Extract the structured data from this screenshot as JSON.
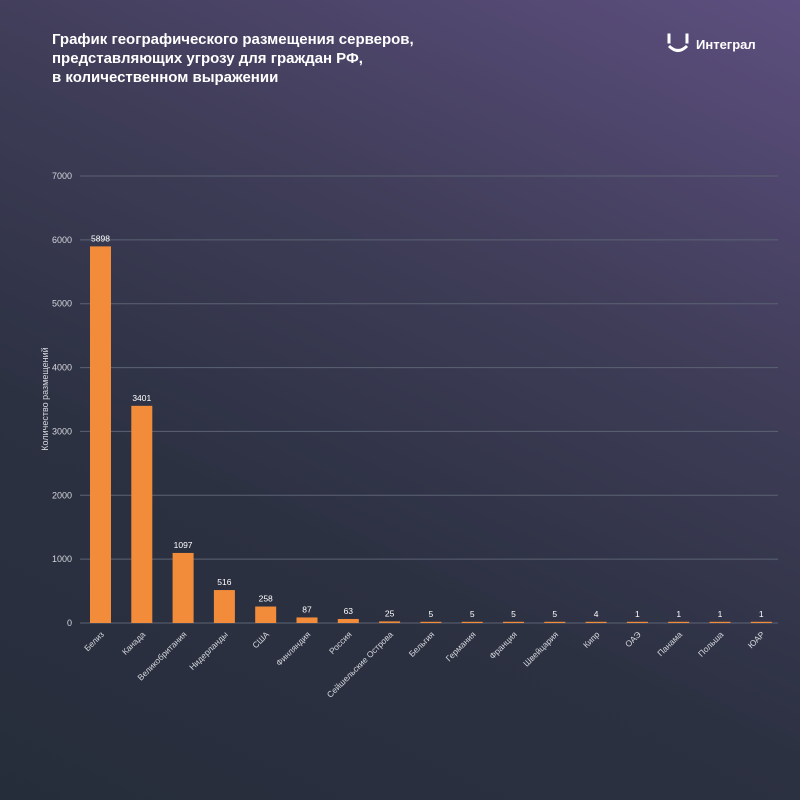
{
  "header": {
    "title_lines": [
      "График географического размещения серверов,",
      "представляющих угрозу для граждан РФ,",
      "в количественном выражении"
    ],
    "logo_text": "Интеграл",
    "logo_icon": "integral-bracket-icon"
  },
  "colors": {
    "bar": "#f28c3a",
    "grid": "#5c6373",
    "text": "#ffffff",
    "axis_text": "#d5d7dd"
  },
  "chart_data": {
    "type": "bar",
    "title": "График географического размещения серверов, представляющих угрозу для граждан РФ, в количественном выражении",
    "xlabel": "",
    "ylabel": "Количество размещений",
    "ylim": [
      0,
      7000
    ],
    "yticks": [
      0,
      1000,
      2000,
      3000,
      4000,
      5000,
      6000,
      7000
    ],
    "grid": true,
    "categories": [
      "Белиз",
      "Канада",
      "Великобритания",
      "Нидерланды",
      "США",
      "Финляндия",
      "Россия",
      "Сейшельские Острова",
      "Бельгия",
      "Германия",
      "Франция",
      "Швейцария",
      "Кипр",
      "ОАЭ",
      "Панама",
      "Польша",
      "ЮАР"
    ],
    "values": [
      5898,
      3401,
      1097,
      516,
      258,
      87,
      63,
      25,
      5,
      5,
      5,
      5,
      4,
      1,
      1,
      1,
      1
    ]
  }
}
